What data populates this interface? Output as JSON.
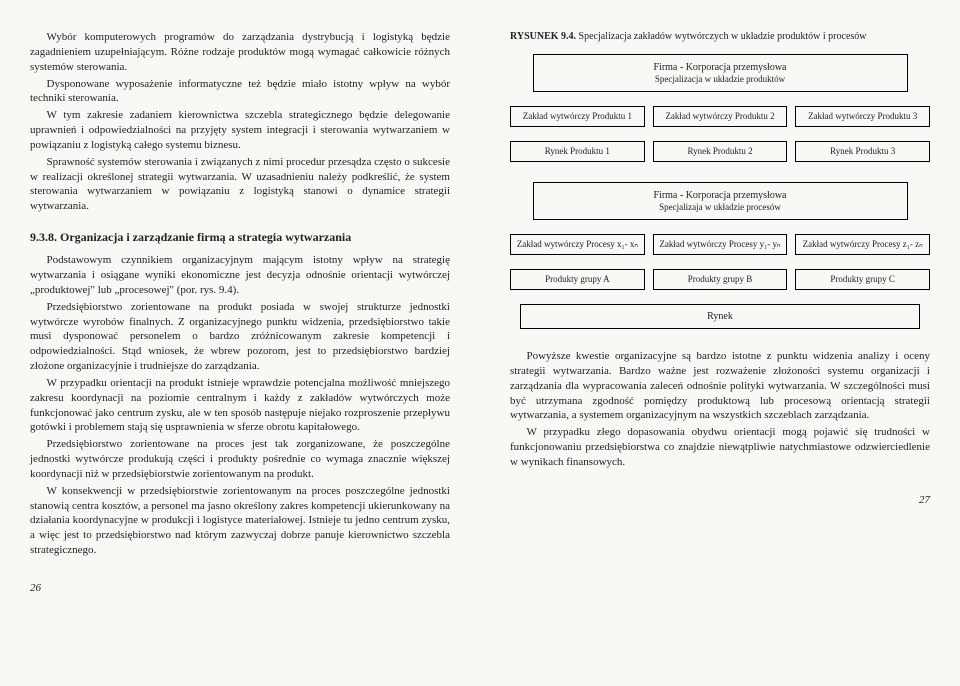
{
  "left": {
    "p1": "Wybór komputerowych programów do zarządzania dystrybucją i logistyką będzie zagadnieniem uzupełniającym. Różne rodzaje produktów mogą wymagać całkowicie różnych systemów sterowania.",
    "p2": "Dysponowane wyposażenie informatyczne też będzie miało istotny wpływ na wybór techniki sterowania.",
    "p3": "W tym zakresie zadaniem kierownictwa szczebla strategicznego będzie delegowanie uprawnień i odpowiedzialności na przyjęty system integracji i sterowania wytwarzaniem w powiązaniu z logistyką całego systemu biznesu.",
    "p4": "Sprawność systemów sterowania i związanych z nimi procedur przesądza często o sukcesie w realizacji określonej strategii wytwarzania. W uzasadnieniu należy podkreślić, że system sterowania wytwarzaniem w powiązaniu z logistyką stanowi o dynamice strategii wytwarzania.",
    "section_title": "9.3.8. Organizacja i zarządzanie firmą a strategia wytwarzania",
    "p5": "Podstawowym czynnikiem organizacyjnym mającym istotny wpływ na strategię wytwarzania i osiągane wyniki ekonomiczne jest decyzja odnośnie orientacji wytwórczej „produktowej\" lub „procesowej\" (por. rys. 9.4).",
    "p6": "Przedsiębiorstwo zorientowane na produkt posiada w swojej strukturze jednostki wytwórcze wyrobów finalnych. Z organizacyjnego punktu widzenia, przedsiębiorstwo takie musi dysponować personelem o bardzo zróżnicowanym zakresie kompetencji i odpowiedzialności. Stąd wniosek, że wbrew pozorom, jest to przedsiębiorstwo bardziej złożone organizacyjnie i trudniejsze do zarządzania.",
    "p7": "W przypadku orientacji na produkt istnieje wprawdzie potencjalna możliwość mniejszego zakresu koordynacji na poziomie centralnym i każdy z zakładów wytwórczych może funkcjonować jako centrum zysku, ale w ten sposób następuje niejako rozproszenie przepływu gotówki i problemem stają się usprawnienia w sferze obrotu kapitałowego.",
    "p8": "Przedsiębiorstwo zorientowane na proces jest tak zorganizowane, że poszczególne jednostki wytwórcze produkują części i produkty pośrednie co wymaga znacznie większej koordynacji niż w przedsiębiorstwie zorientowanym na produkt.",
    "p9": "W konsekwencji w przedsiębiorstwie zorientowanym na proces poszczególne jednostki stanowią centra kosztów, a personel ma jasno określony zakres kompetencji ukierunkowany na działania koordynacyjne w produkcji i logistyce materiałowej. Istnieje tu jedno centrum zysku, a więc jest to przedsiębiorstwo nad którym zazwyczaj dobrze panuje kierownictwo szczebla strategicznego.",
    "page_num": "26"
  },
  "right": {
    "fig_label": "RYSUNEK 9.4.",
    "fig_text": "Specjalizacja zakładów wytwórczych w układzie produktów i procesów",
    "diagram1": {
      "firm": "Firma - Korporacja przemysłowa",
      "firm_sub": "Specjalizacja w układzie produktów",
      "row1": [
        "Zakład wytwórczy Produktu 1",
        "Zakład wytwórczy Produktu 2",
        "Zakład wytwórczy Produktu 3"
      ],
      "row2": [
        "Rynek Produktu 1",
        "Rynek Produktu 2",
        "Rynek Produktu 3"
      ]
    },
    "diagram2": {
      "firm": "Firma - Korporacja przemysłowa",
      "firm_sub": "Specjalizaja w układzie procesów",
      "row1": [
        "Zakład wytwórczy Procesy x₁- xₙ",
        "Zakład wytwórczy Procesy y₁- yₙ",
        "Zakład wytwórczy Procesy z₁- zₙ"
      ],
      "row2": [
        "Produkty grupy A",
        "Produkty grupy B",
        "Produkty grupy C"
      ],
      "rynek": "Rynek"
    },
    "p1": "Powyższe kwestie organizacyjne są bardzo istotne z punktu widzenia analizy i oceny strategii wytwarzania. Bardzo ważne jest rozważenie złożoności systemu organizacji i zarządzania dla wypracowania zaleceń odnośnie polityki wytwarzania. W szczególności musi być utrzymana zgodność pomiędzy produktową lub procesową orientacją strategii wytwarzania, a systemem organizacyjnym na wszystkich szczeblach zarządzania.",
    "p2": "W przypadku złego dopasowania obydwu orientacji mogą pojawić się trudności w funkcjonowaniu przedsiębiorstwa co znajdzie niewątpliwie natychmiastowe odzwierciedlenie w wynikach finansowych.",
    "page_num": "27"
  }
}
